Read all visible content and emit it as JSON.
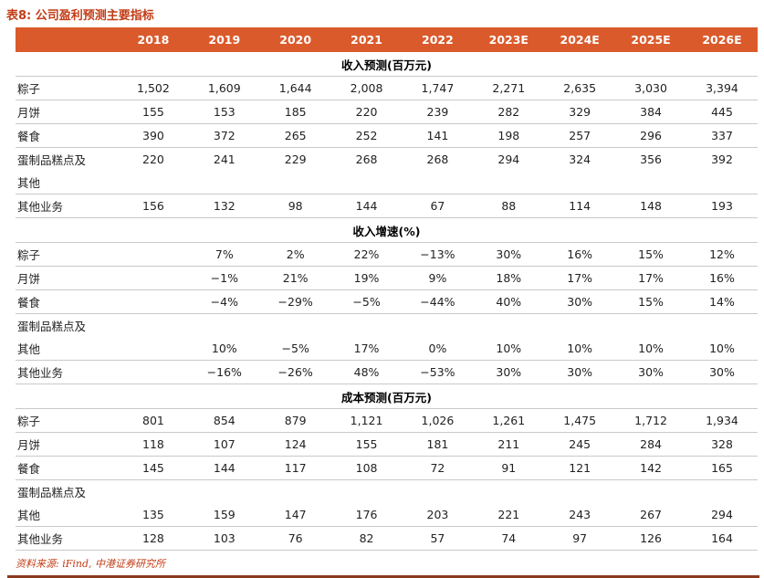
{
  "title": "表8: 公司盈利预测主要指标",
  "footer": "资料来源: iFind, 中港证券研究所",
  "colors": {
    "header_bg": "#db5a2c",
    "accent": "#c23c16",
    "row_border": "#c9c9c9",
    "bottom_rule": "#8b3a1e"
  },
  "table": {
    "columns": [
      "2018",
      "2019",
      "2020",
      "2021",
      "2022",
      "2023E",
      "2024E",
      "2025E",
      "2026E"
    ],
    "sections": [
      {
        "header": "收入预测(百万元)",
        "rows": [
          {
            "label": "粽子",
            "values": [
              "1,502",
              "1,609",
              "1,644",
              "2,008",
              "1,747",
              "2,271",
              "2,635",
              "3,030",
              "3,394"
            ]
          },
          {
            "label": "月饼",
            "values": [
              "155",
              "153",
              "185",
              "220",
              "239",
              "282",
              "329",
              "384",
              "445"
            ]
          },
          {
            "label": "餐食",
            "values": [
              "390",
              "372",
              "265",
              "252",
              "141",
              "198",
              "257",
              "296",
              "337"
            ]
          },
          {
            "label": "蛋制品糕点及",
            "values": [
              "220",
              "241",
              "229",
              "268",
              "268",
              "294",
              "324",
              "356",
              "392"
            ],
            "merge_next": true
          },
          {
            "label": "其他",
            "values": [
              "",
              "",
              "",
              "",
              "",
              "",
              "",
              "",
              ""
            ]
          },
          {
            "label": "其他业务",
            "values": [
              "156",
              "132",
              "98",
              "144",
              "67",
              "88",
              "114",
              "148",
              "193"
            ]
          }
        ]
      },
      {
        "header": "收入增速(%)",
        "rows": [
          {
            "label": "粽子",
            "values": [
              "",
              "7%",
              "2%",
              "22%",
              "−13%",
              "30%",
              "16%",
              "15%",
              "12%"
            ]
          },
          {
            "label": "月饼",
            "values": [
              "",
              "−1%",
              "21%",
              "19%",
              "9%",
              "18%",
              "17%",
              "17%",
              "16%"
            ]
          },
          {
            "label": "餐食",
            "values": [
              "",
              "−4%",
              "−29%",
              "−5%",
              "−44%",
              "40%",
              "30%",
              "15%",
              "14%"
            ]
          },
          {
            "label": "蛋制品糕点及",
            "values": [
              "",
              "",
              "",
              "",
              "",
              "",
              "",
              "",
              ""
            ],
            "merge_next": true
          },
          {
            "label": "其他",
            "values": [
              "",
              "10%",
              "−5%",
              "17%",
              "0%",
              "10%",
              "10%",
              "10%",
              "10%"
            ]
          },
          {
            "label": "其他业务",
            "values": [
              "",
              "−16%",
              "−26%",
              "48%",
              "−53%",
              "30%",
              "30%",
              "30%",
              "30%"
            ]
          }
        ]
      },
      {
        "header": "成本预测(百万元)",
        "rows": [
          {
            "label": "粽子",
            "values": [
              "801",
              "854",
              "879",
              "1,121",
              "1,026",
              "1,261",
              "1,475",
              "1,712",
              "1,934"
            ]
          },
          {
            "label": "月饼",
            "values": [
              "118",
              "107",
              "124",
              "155",
              "181",
              "211",
              "245",
              "284",
              "328"
            ]
          },
          {
            "label": "餐食",
            "values": [
              "145",
              "144",
              "117",
              "108",
              "72",
              "91",
              "121",
              "142",
              "165"
            ]
          },
          {
            "label": "蛋制品糕点及",
            "values": [
              "",
              "",
              "",
              "",
              "",
              "",
              "",
              "",
              ""
            ],
            "merge_next": true
          },
          {
            "label": "其他",
            "values": [
              "135",
              "159",
              "147",
              "176",
              "203",
              "221",
              "243",
              "267",
              "294"
            ]
          },
          {
            "label": "其他业务",
            "values": [
              "128",
              "103",
              "76",
              "82",
              "57",
              "74",
              "97",
              "126",
              "164"
            ]
          }
        ]
      }
    ]
  }
}
